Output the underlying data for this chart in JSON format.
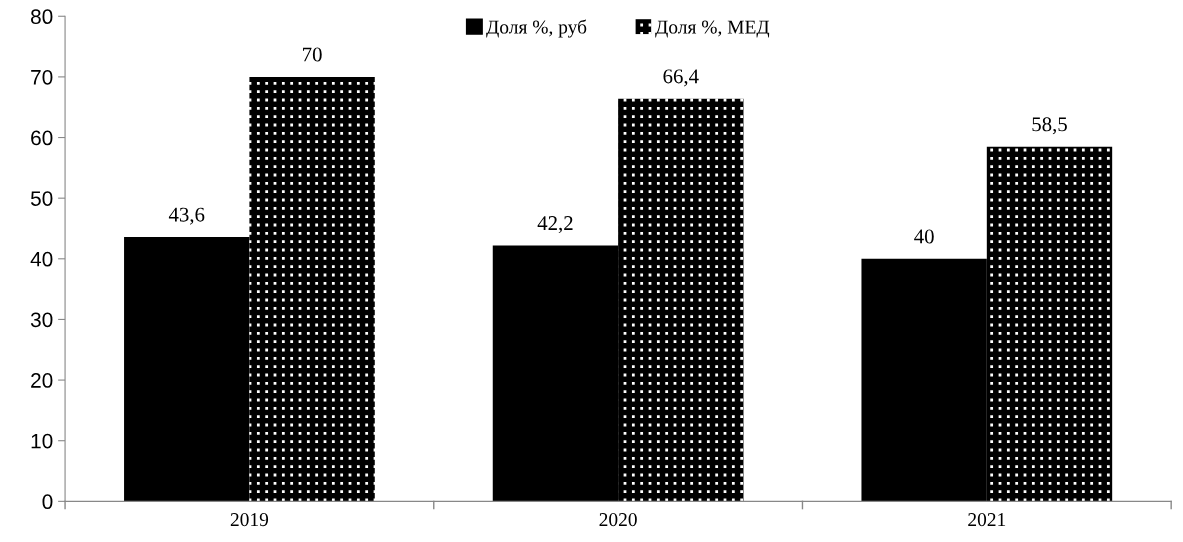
{
  "chart_data": {
    "type": "bar",
    "categories": [
      "2019",
      "2020",
      "2021"
    ],
    "series": [
      {
        "name": "Доля %, руб",
        "color": "#000000",
        "values": [
          43.6,
          42.2,
          40
        ],
        "value_labels": [
          "43,6",
          "42,2",
          "40"
        ]
      },
      {
        "name": "Доля %, МЕД",
        "color": "#000000",
        "values": [
          70,
          66.4,
          58.5
        ],
        "value_labels": [
          "70",
          "66,4",
          "58,5"
        ]
      }
    ],
    "ylim": [
      0,
      80
    ],
    "yticks": [
      0,
      10,
      20,
      30,
      40,
      50,
      60,
      70,
      80
    ],
    "legend": "top",
    "grid": false
  }
}
